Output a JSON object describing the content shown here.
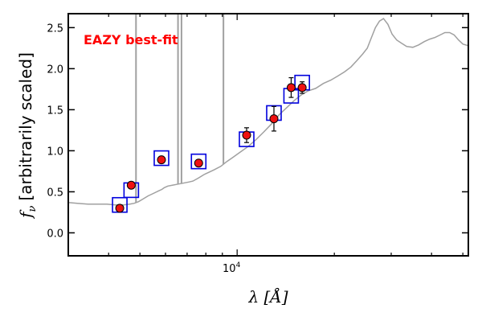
{
  "chart_data": {
    "type": "scatter",
    "annotation": "EAZY best-fit",
    "annotation_color": "#ff0000",
    "xlabel": "λ [Å]",
    "ylabel": "f_ν [arbitrarily scaled]",
    "ylabel_prefix": "f",
    "ylabel_sub": "ν",
    "ylabel_rest": "[arbitrarily scaled]",
    "xscale": "log",
    "xlim": [
      3000,
      52000
    ],
    "ylim": [
      -0.28,
      2.67
    ],
    "y_ticks": [
      0.0,
      0.5,
      1.0,
      1.5,
      2.0,
      2.5
    ],
    "y_tick_labels": [
      "0.0",
      "0.5",
      "1.0",
      "1.5",
      "2.0",
      "2.5"
    ],
    "x_tick_labels": [
      {
        "value": 10000,
        "base": "10",
        "exp": "4"
      }
    ],
    "grid": false,
    "series": [
      {
        "role": "model-spectrum",
        "style": "line",
        "color": "#a0a0a0",
        "points": [
          [
            3000,
            0.37
          ],
          [
            3200,
            0.36
          ],
          [
            3450,
            0.35
          ],
          [
            3700,
            0.35
          ],
          [
            3950,
            0.35
          ],
          [
            4200,
            0.34
          ],
          [
            4450,
            0.34
          ],
          [
            4650,
            0.35
          ],
          [
            4800,
            0.36
          ],
          [
            4950,
            0.38
          ],
          [
            5100,
            0.41
          ],
          [
            5300,
            0.45
          ],
          [
            5500,
            0.48
          ],
          [
            5700,
            0.51
          ],
          [
            5850,
            0.53
          ],
          [
            5950,
            0.55
          ],
          [
            6100,
            0.57
          ],
          [
            6300,
            0.58
          ],
          [
            6500,
            0.59
          ],
          [
            6700,
            0.6
          ],
          [
            6900,
            0.61
          ],
          [
            7100,
            0.62
          ],
          [
            7300,
            0.63
          ],
          [
            7600,
            0.67
          ],
          [
            7900,
            0.71
          ],
          [
            8200,
            0.74
          ],
          [
            8500,
            0.77
          ],
          [
            8900,
            0.81
          ],
          [
            9300,
            0.87
          ],
          [
            9700,
            0.92
          ],
          [
            10200,
            0.98
          ],
          [
            10800,
            1.05
          ],
          [
            11400,
            1.13
          ],
          [
            12100,
            1.23
          ],
          [
            12800,
            1.33
          ],
          [
            13500,
            1.44
          ],
          [
            14200,
            1.52
          ],
          [
            15000,
            1.61
          ],
          [
            15800,
            1.68
          ],
          [
            16600,
            1.73
          ],
          [
            17500,
            1.76
          ],
          [
            18500,
            1.82
          ],
          [
            19500,
            1.86
          ],
          [
            20500,
            1.91
          ],
          [
            21500,
            1.96
          ],
          [
            22500,
            2.02
          ],
          [
            23500,
            2.1
          ],
          [
            24500,
            2.18
          ],
          [
            25300,
            2.25
          ],
          [
            26000,
            2.37
          ],
          [
            26800,
            2.5
          ],
          [
            27600,
            2.58
          ],
          [
            28400,
            2.61
          ],
          [
            29300,
            2.54
          ],
          [
            30200,
            2.42
          ],
          [
            31200,
            2.35
          ],
          [
            32300,
            2.31
          ],
          [
            33500,
            2.27
          ],
          [
            35000,
            2.26
          ],
          [
            36500,
            2.29
          ],
          [
            38000,
            2.33
          ],
          [
            39500,
            2.36
          ],
          [
            41000,
            2.38
          ],
          [
            42500,
            2.41
          ],
          [
            44000,
            2.44
          ],
          [
            45500,
            2.44
          ],
          [
            47000,
            2.41
          ],
          [
            48500,
            2.35
          ],
          [
            50000,
            2.3
          ],
          [
            52000,
            2.28
          ]
        ],
        "emission_lines": [
          {
            "lambda": 4862,
            "peak": 2.7
          },
          {
            "lambda": 6560,
            "peak": 2.7
          },
          {
            "lambda": 6725,
            "peak": 2.7
          },
          {
            "lambda": 9070,
            "peak": 2.7
          }
        ]
      },
      {
        "role": "model-photometry",
        "style": "open-square",
        "color": "#0000dd",
        "points": [
          [
            4330,
            0.34
          ],
          [
            4700,
            0.52
          ],
          [
            5830,
            0.91
          ],
          [
            7600,
            0.87
          ],
          [
            10700,
            1.14
          ],
          [
            13000,
            1.46
          ],
          [
            14700,
            1.67
          ],
          [
            15900,
            1.83
          ]
        ]
      },
      {
        "role": "observed-photometry",
        "style": "filled-circle-errorbar",
        "color": "#ee1111",
        "points": [
          [
            4330,
            0.3,
            0.02
          ],
          [
            4700,
            0.58,
            0.04
          ],
          [
            5830,
            0.89,
            0.03
          ],
          [
            7600,
            0.85,
            0.03
          ],
          [
            10700,
            1.19,
            0.09
          ],
          [
            13000,
            1.39,
            0.15
          ],
          [
            14700,
            1.77,
            0.12
          ],
          [
            15900,
            1.77,
            0.07
          ]
        ]
      }
    ]
  }
}
